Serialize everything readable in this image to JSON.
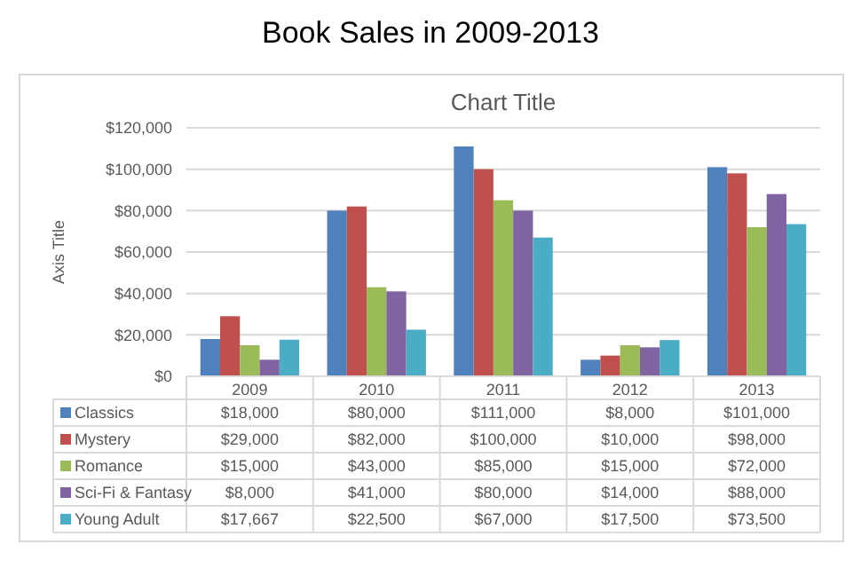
{
  "chart_data": {
    "type": "bar",
    "title": "Book Sales in 2009-2013",
    "subtitle": "Chart Title",
    "ylabel": "Axis Title",
    "categories": [
      "2009",
      "2010",
      "2011",
      "2012",
      "2013"
    ],
    "series": [
      {
        "name": "Classics",
        "color": "#4f81bd",
        "values": [
          18000,
          80000,
          111000,
          8000,
          101000
        ],
        "value_labels": [
          "$18,000",
          "$80,000",
          "$111,000",
          "$8,000",
          "$101,000"
        ]
      },
      {
        "name": "Mystery",
        "color": "#c0504d",
        "values": [
          29000,
          82000,
          100000,
          10000,
          98000
        ],
        "value_labels": [
          "$29,000",
          "$82,000",
          "$100,000",
          "$10,000",
          "$98,000"
        ]
      },
      {
        "name": "Romance",
        "color": "#9bbb59",
        "values": [
          15000,
          43000,
          85000,
          15000,
          72000
        ],
        "value_labels": [
          "$15,000",
          "$43,000",
          "$85,000",
          "$15,000",
          "$72,000"
        ]
      },
      {
        "name": "Sci-Fi & Fantasy",
        "color": "#8064a2",
        "values": [
          8000,
          41000,
          80000,
          14000,
          88000
        ],
        "value_labels": [
          "$8,000",
          "$41,000",
          "$80,000",
          "$14,000",
          "$88,000"
        ]
      },
      {
        "name": "Young Adult",
        "color": "#4bacc6",
        "values": [
          17667,
          22500,
          67000,
          17500,
          73500
        ],
        "value_labels": [
          "$17,667",
          "$22,500",
          "$67,000",
          "$17,500",
          "$73,500"
        ]
      }
    ],
    "ylim": [
      0,
      120000
    ],
    "yticks": [
      {
        "value": 0,
        "label": "$0"
      },
      {
        "value": 20000,
        "label": "$20,000"
      },
      {
        "value": 40000,
        "label": "$40,000"
      },
      {
        "value": 60000,
        "label": "$60,000"
      },
      {
        "value": 80000,
        "label": "$80,000"
      },
      {
        "value": 100000,
        "label": "$100,000"
      },
      {
        "value": 120000,
        "label": "$120,000"
      }
    ],
    "grid": "y",
    "legend": "bottom"
  }
}
